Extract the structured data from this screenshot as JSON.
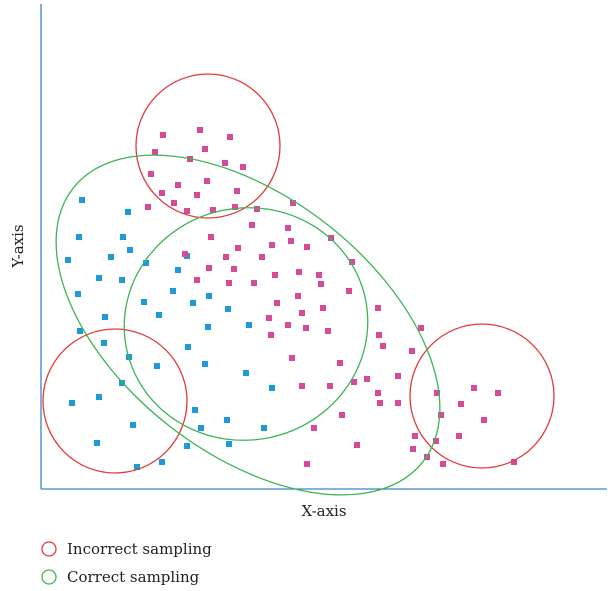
{
  "chart_data": {
    "type": "scatter",
    "xlabel": "X-axis",
    "ylabel": "Y-axis",
    "grid": false,
    "legend_position": "bottom-left",
    "legend": [
      {
        "label": "Incorrect sampling",
        "color": "#e03a3a"
      },
      {
        "label": "Correct sampling",
        "color": "#3cb554"
      }
    ],
    "colors": {
      "axis": "#3a86c8",
      "pink_points": "#d64a9a",
      "blue_points": "#1e9bd7",
      "incorrect": "#e03a3a",
      "correct": "#3cb554"
    },
    "points_blue": [
      [
        82,
        200
      ],
      [
        128,
        212
      ],
      [
        79,
        237
      ],
      [
        123,
        237
      ],
      [
        68,
        260
      ],
      [
        111,
        257
      ],
      [
        130,
        250
      ],
      [
        146,
        263
      ],
      [
        99,
        278
      ],
      [
        122,
        280
      ],
      [
        78,
        294
      ],
      [
        144,
        302
      ],
      [
        178,
        270
      ],
      [
        187,
        256
      ],
      [
        173,
        291
      ],
      [
        193,
        303
      ],
      [
        159,
        315
      ],
      [
        105,
        317
      ],
      [
        209,
        296
      ],
      [
        80,
        331
      ],
      [
        104,
        343
      ],
      [
        228,
        309
      ],
      [
        208,
        327
      ],
      [
        249,
        325
      ],
      [
        188,
        347
      ],
      [
        129,
        357
      ],
      [
        157,
        366
      ],
      [
        205,
        364
      ],
      [
        246,
        373
      ],
      [
        72,
        403
      ],
      [
        99,
        397
      ],
      [
        122,
        383
      ],
      [
        272,
        388
      ],
      [
        195,
        410
      ],
      [
        227,
        420
      ],
      [
        133,
        425
      ],
      [
        201,
        428
      ],
      [
        264,
        428
      ],
      [
        97,
        443
      ],
      [
        187,
        446
      ],
      [
        229,
        444
      ],
      [
        162,
        462
      ],
      [
        137,
        467
      ]
    ],
    "points_pink": [
      [
        163,
        135
      ],
      [
        200,
        130
      ],
      [
        230,
        137
      ],
      [
        155,
        152
      ],
      [
        190,
        159
      ],
      [
        205,
        149
      ],
      [
        225,
        163
      ],
      [
        243,
        167
      ],
      [
        151,
        174
      ],
      [
        178,
        185
      ],
      [
        207,
        181
      ],
      [
        162,
        193
      ],
      [
        197,
        195
      ],
      [
        237,
        191
      ],
      [
        148,
        207
      ],
      [
        174,
        203
      ],
      [
        187,
        211
      ],
      [
        213,
        210
      ],
      [
        235,
        207
      ],
      [
        257,
        209
      ],
      [
        293,
        203
      ],
      [
        252,
        225
      ],
      [
        288,
        228
      ],
      [
        211,
        237
      ],
      [
        238,
        248
      ],
      [
        272,
        245
      ],
      [
        291,
        241
      ],
      [
        331,
        238
      ],
      [
        185,
        254
      ],
      [
        226,
        257
      ],
      [
        262,
        257
      ],
      [
        307,
        247
      ],
      [
        209,
        268
      ],
      [
        234,
        269
      ],
      [
        275,
        275
      ],
      [
        299,
        272
      ],
      [
        319,
        275
      ],
      [
        352,
        262
      ],
      [
        197,
        280
      ],
      [
        229,
        283
      ],
      [
        254,
        283
      ],
      [
        298,
        296
      ],
      [
        321,
        284
      ],
      [
        349,
        291
      ],
      [
        277,
        303
      ],
      [
        302,
        313
      ],
      [
        323,
        308
      ],
      [
        378,
        308
      ],
      [
        269,
        318
      ],
      [
        288,
        325
      ],
      [
        306,
        328
      ],
      [
        328,
        331
      ],
      [
        421,
        328
      ],
      [
        271,
        335
      ],
      [
        379,
        335
      ],
      [
        292,
        358
      ],
      [
        340,
        363
      ],
      [
        383,
        346
      ],
      [
        412,
        351
      ],
      [
        302,
        386
      ],
      [
        330,
        386
      ],
      [
        354,
        382
      ],
      [
        367,
        379
      ],
      [
        398,
        376
      ],
      [
        342,
        415
      ],
      [
        378,
        393
      ],
      [
        380,
        403
      ],
      [
        398,
        403
      ],
      [
        314,
        428
      ],
      [
        437,
        393
      ],
      [
        474,
        388
      ],
      [
        498,
        393
      ],
      [
        441,
        415
      ],
      [
        461,
        404
      ],
      [
        415,
        436
      ],
      [
        436,
        441
      ],
      [
        484,
        420
      ],
      [
        459,
        436
      ],
      [
        357,
        445
      ],
      [
        413,
        449
      ],
      [
        427,
        457
      ],
      [
        443,
        464
      ],
      [
        514,
        462
      ],
      [
        307,
        464
      ]
    ]
  }
}
